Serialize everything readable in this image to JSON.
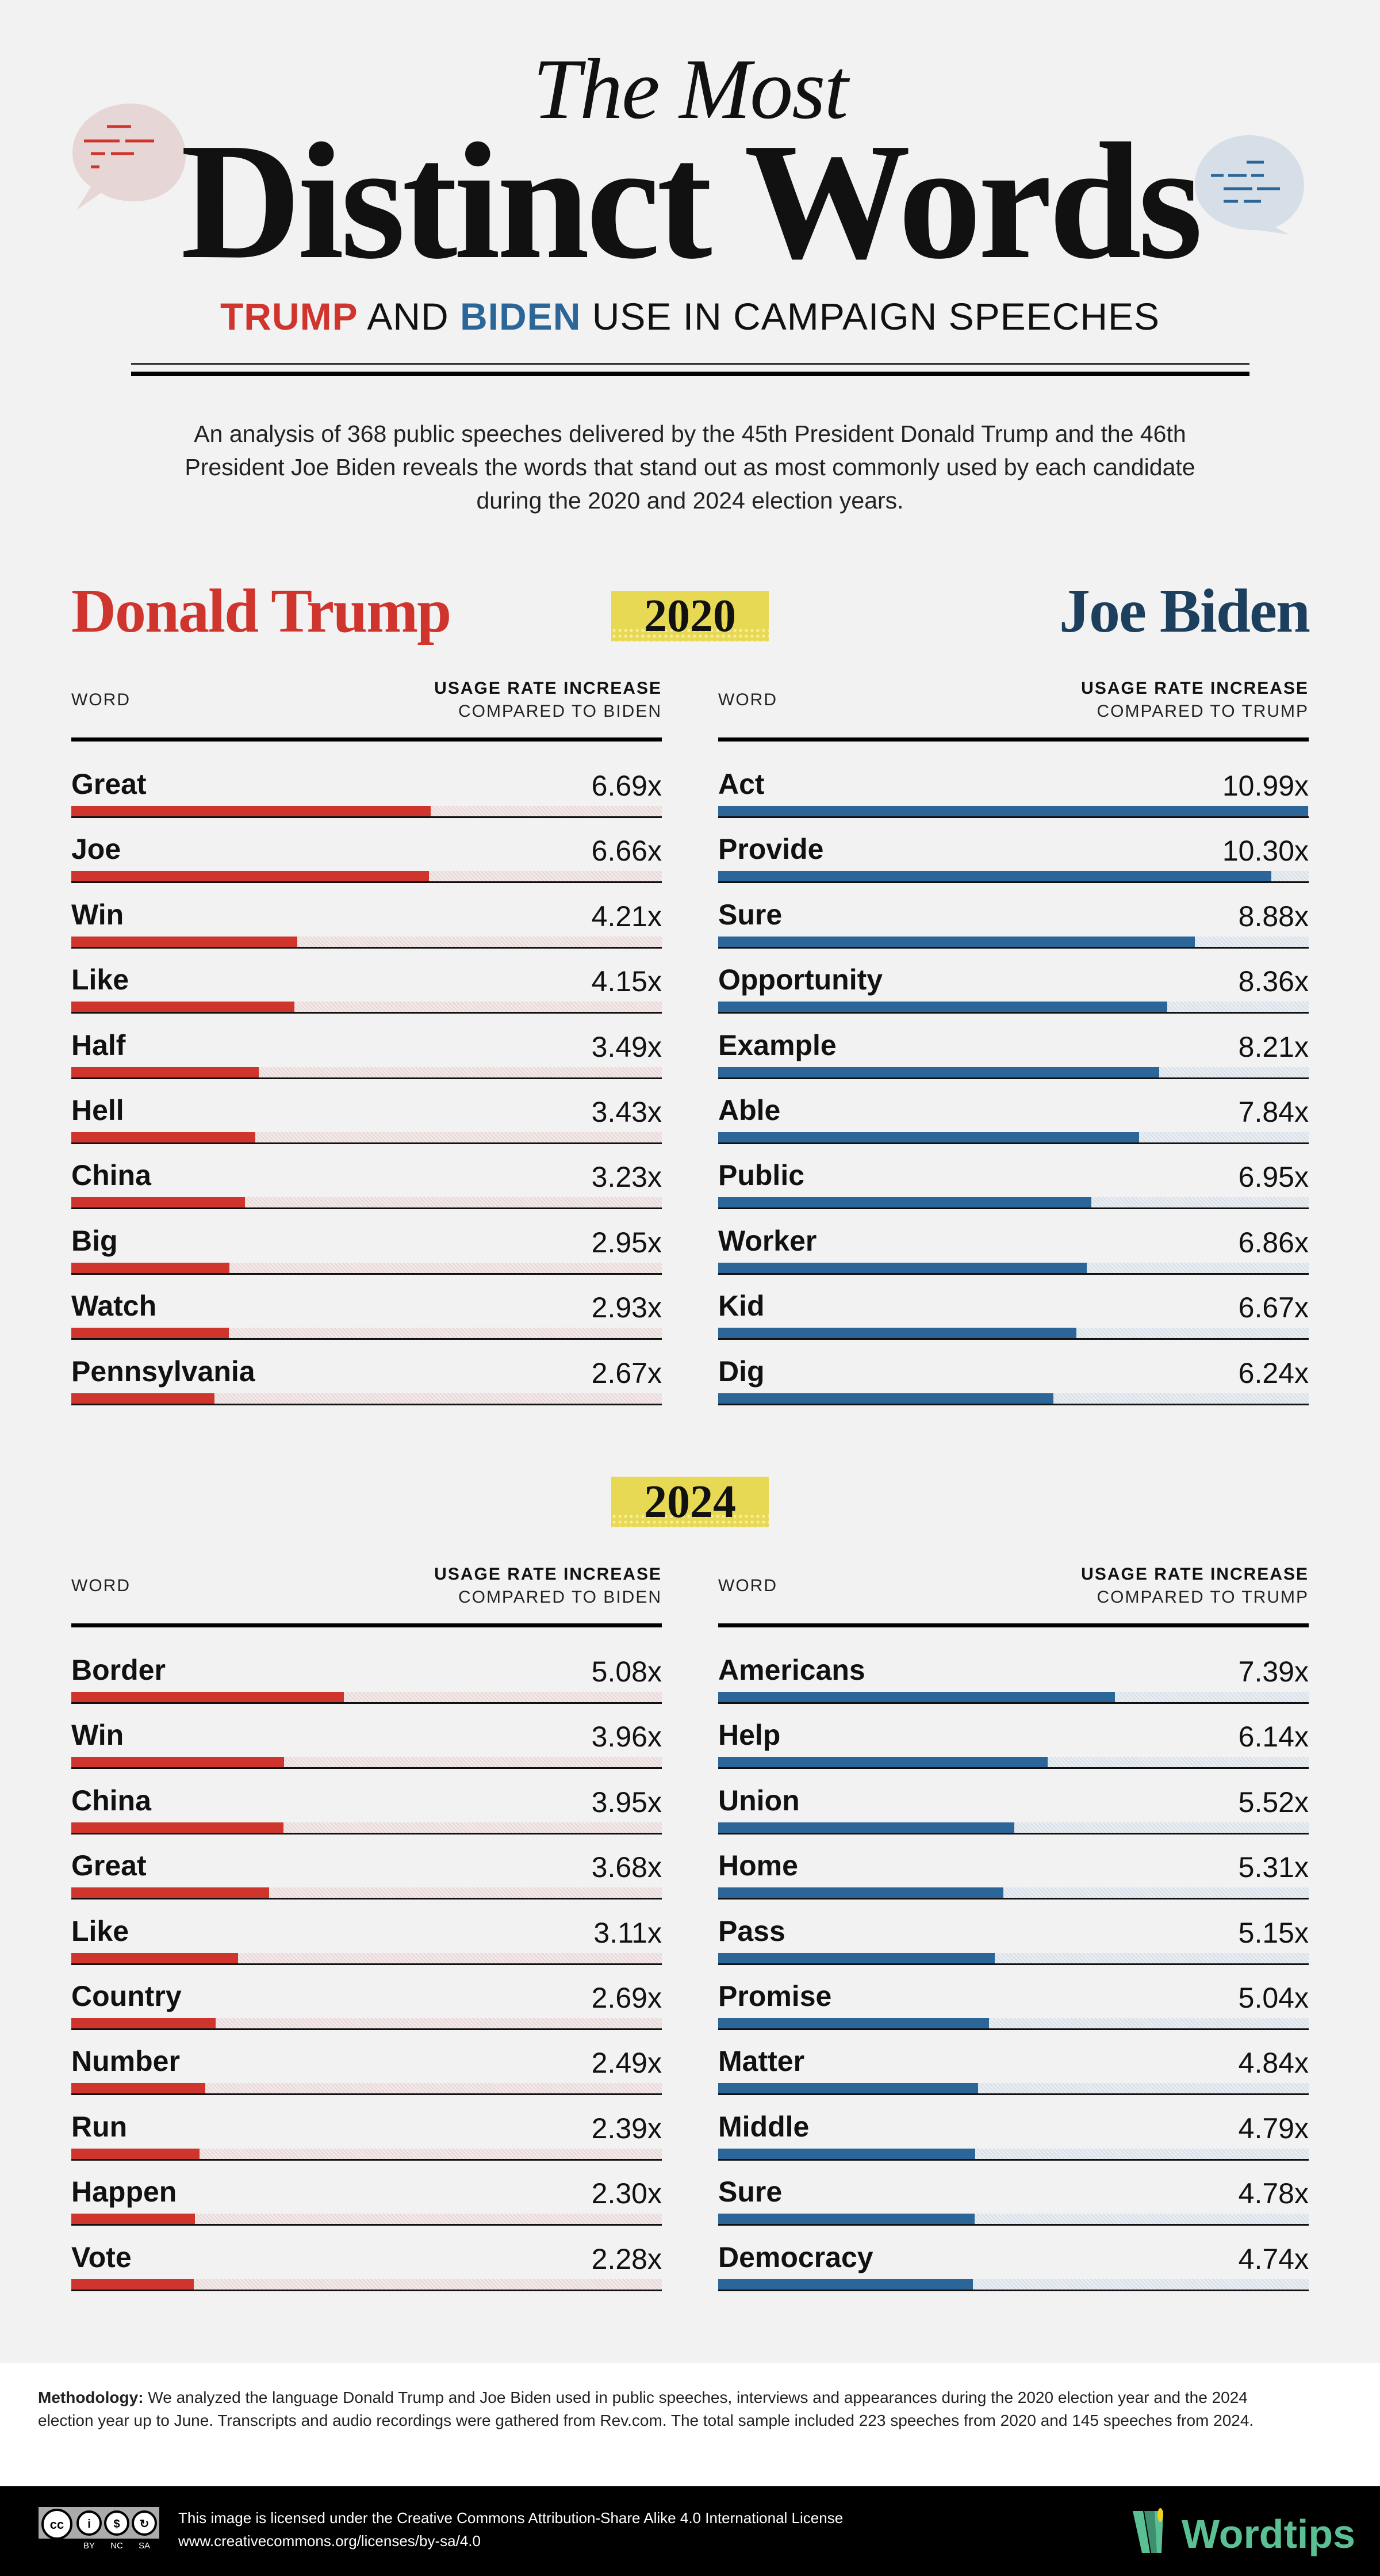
{
  "header": {
    "title_small": "The Most",
    "title_big": "Distinct Words",
    "subtitle_trump": "TRUMP",
    "subtitle_and": " AND ",
    "subtitle_biden": "BIDEN",
    "subtitle_rest": " USE IN CAMPAIGN SPEECHES",
    "intro": "An analysis of 368 public speeches delivered by the 45th President Donald Trump and the 46th President Joe Biden reveals the words that stand out as most commonly used by each candidate during the 2020 and 2024 election years."
  },
  "candidates": {
    "trump": "Donald Trump",
    "biden": "Joe Biden"
  },
  "years": {
    "y2020": "2020",
    "y2024": "2024"
  },
  "table_headers": {
    "word": "WORD",
    "usage": "USAGE RATE INCREASE",
    "compared_biden": "COMPARED TO BIDEN",
    "compared_trump": "COMPARED TO TRUMP"
  },
  "colors": {
    "trump": "#cf352c",
    "biden": "#2c6699",
    "biden_title": "#1c3f5e",
    "year_badge": "#e8d954",
    "brand": "#5bbf94"
  },
  "chart_data": [
    {
      "type": "bar",
      "title": "Donald Trump 2020",
      "xlim": [
        0,
        11
      ],
      "categories": [
        "Great",
        "Joe",
        "Win",
        "Like",
        "Half",
        "Hell",
        "China",
        "Big",
        "Watch",
        "Pennsylvania"
      ],
      "values": [
        6.69,
        6.66,
        4.21,
        4.15,
        3.49,
        3.43,
        3.23,
        2.95,
        2.93,
        2.67
      ],
      "labels": [
        "6.69x",
        "6.66x",
        "4.21x",
        "4.15x",
        "3.49x",
        "3.43x",
        "3.23x",
        "2.95x",
        "2.93x",
        "2.67x"
      ]
    },
    {
      "type": "bar",
      "title": "Joe Biden 2020",
      "xlim": [
        0,
        11
      ],
      "categories": [
        "Act",
        "Provide",
        "Sure",
        "Opportunity",
        "Example",
        "Able",
        "Public",
        "Worker",
        "Kid",
        "Dig"
      ],
      "values": [
        10.99,
        10.3,
        8.88,
        8.36,
        8.21,
        7.84,
        6.95,
        6.86,
        6.67,
        6.24
      ],
      "labels": [
        "10.99x",
        "10.30x",
        "8.88x",
        "8.36x",
        "8.21x",
        "7.84x",
        "6.95x",
        "6.86x",
        "6.67x",
        "6.24x"
      ]
    },
    {
      "type": "bar",
      "title": "Donald Trump 2024",
      "xlim": [
        0,
        11
      ],
      "categories": [
        "Border",
        "Win",
        "China",
        "Great",
        "Like",
        "Country",
        "Number",
        "Run",
        "Happen",
        "Vote"
      ],
      "values": [
        5.08,
        3.96,
        3.95,
        3.68,
        3.11,
        2.69,
        2.49,
        2.39,
        2.3,
        2.28
      ],
      "labels": [
        "5.08x",
        "3.96x",
        "3.95x",
        "3.68x",
        "3.11x",
        "2.69x",
        "2.49x",
        "2.39x",
        "2.30x",
        "2.28x"
      ]
    },
    {
      "type": "bar",
      "title": "Joe Biden 2024",
      "xlim": [
        0,
        11
      ],
      "categories": [
        "Americans",
        "Help",
        "Union",
        "Home",
        "Pass",
        "Promise",
        "Matter",
        "Middle",
        "Sure",
        "Democracy"
      ],
      "values": [
        7.39,
        6.14,
        5.52,
        5.31,
        5.15,
        5.04,
        4.84,
        4.79,
        4.78,
        4.74
      ],
      "labels": [
        "7.39x",
        "6.14x",
        "5.52x",
        "5.31x",
        "5.15x",
        "5.04x",
        "4.84x",
        "4.79x",
        "4.78x",
        "4.74x"
      ]
    }
  ],
  "methodology": {
    "label": "Methodology:",
    "text": " We analyzed the language Donald Trump and Joe Biden used in public speeches, interviews and appearances during the 2020 election year and the 2024 election year up to June. Transcripts and audio recordings were gathered from Rev.com. The total sample included 223 speeches from 2020 and 145 speeches from 2024."
  },
  "footer": {
    "license_text": "This image is licensed under the Creative Commons Attribution-Share Alike 4.0 International License",
    "license_url": "www.creativecommons.org/licenses/by-sa/4.0",
    "cc_labels": [
      "BY",
      "NC",
      "SA"
    ],
    "brand": "Wordtips"
  }
}
